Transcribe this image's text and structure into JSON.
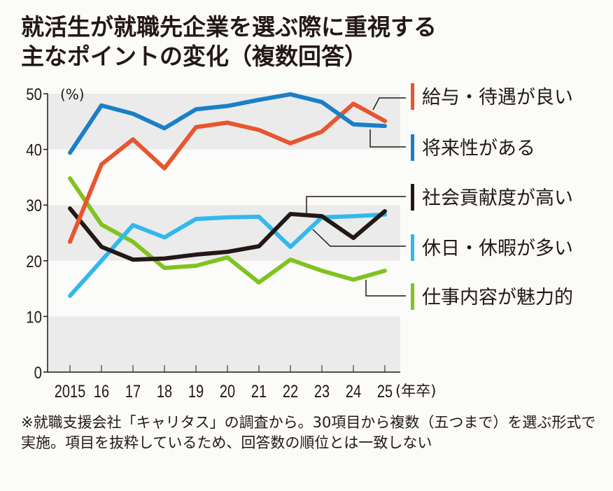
{
  "title_lines": [
    "就活生が就職先企業を選ぶ際に重視する",
    "主なポイントの変化（複数回答）"
  ],
  "note": "※就職支援会社「キャリタス」の調査から。30項目から複数（五つまで）を選ぶ形式で実施。項目を抜粋しているため、回答数の順位とは一致しない",
  "chart_data": {
    "type": "line",
    "title": "就活生が就職先企業を選ぶ際に重視する主なポイントの変化（複数回答）",
    "ylabel": "(%)",
    "xlabel": "(年卒)",
    "categories": [
      "2015",
      "16",
      "17",
      "18",
      "19",
      "20",
      "21",
      "22",
      "23",
      "24",
      "25"
    ],
    "ylim": [
      0,
      50
    ],
    "yticks": [
      0,
      10,
      20,
      30,
      40,
      50
    ],
    "grid": "alternating gray bands",
    "legend": "right, leader lines",
    "series": [
      {
        "name": "給与・待遇が良い",
        "color": "#e8552e",
        "values": [
          23.4,
          37.3,
          41.8,
          36.6,
          44.0,
          44.8,
          43.5,
          41.1,
          43.2,
          48.2,
          45.1
        ]
      },
      {
        "name": "将来性がある",
        "color": "#1a7fc8",
        "values": [
          39.4,
          47.9,
          46.4,
          43.8,
          47.2,
          47.8,
          48.9,
          49.9,
          48.5,
          44.5,
          44.2
        ]
      },
      {
        "name": "社会貢献度が高い",
        "color": "#231815",
        "values": [
          29.4,
          22.5,
          20.2,
          20.4,
          21.1,
          21.6,
          22.6,
          28.4,
          28.0,
          24.1,
          28.9
        ]
      },
      {
        "name": "休日・休暇が多い",
        "color": "#33b8ec",
        "values": [
          13.7,
          20.0,
          26.4,
          24.2,
          27.5,
          27.8,
          27.9,
          22.5,
          27.8,
          28.0,
          28.3
        ]
      },
      {
        "name": "仕事内容が魅力的",
        "color": "#80c31f",
        "values": [
          34.8,
          26.5,
          23.4,
          18.7,
          19.1,
          20.6,
          16.1,
          20.2,
          18.2,
          16.6,
          18.2
        ]
      }
    ]
  }
}
